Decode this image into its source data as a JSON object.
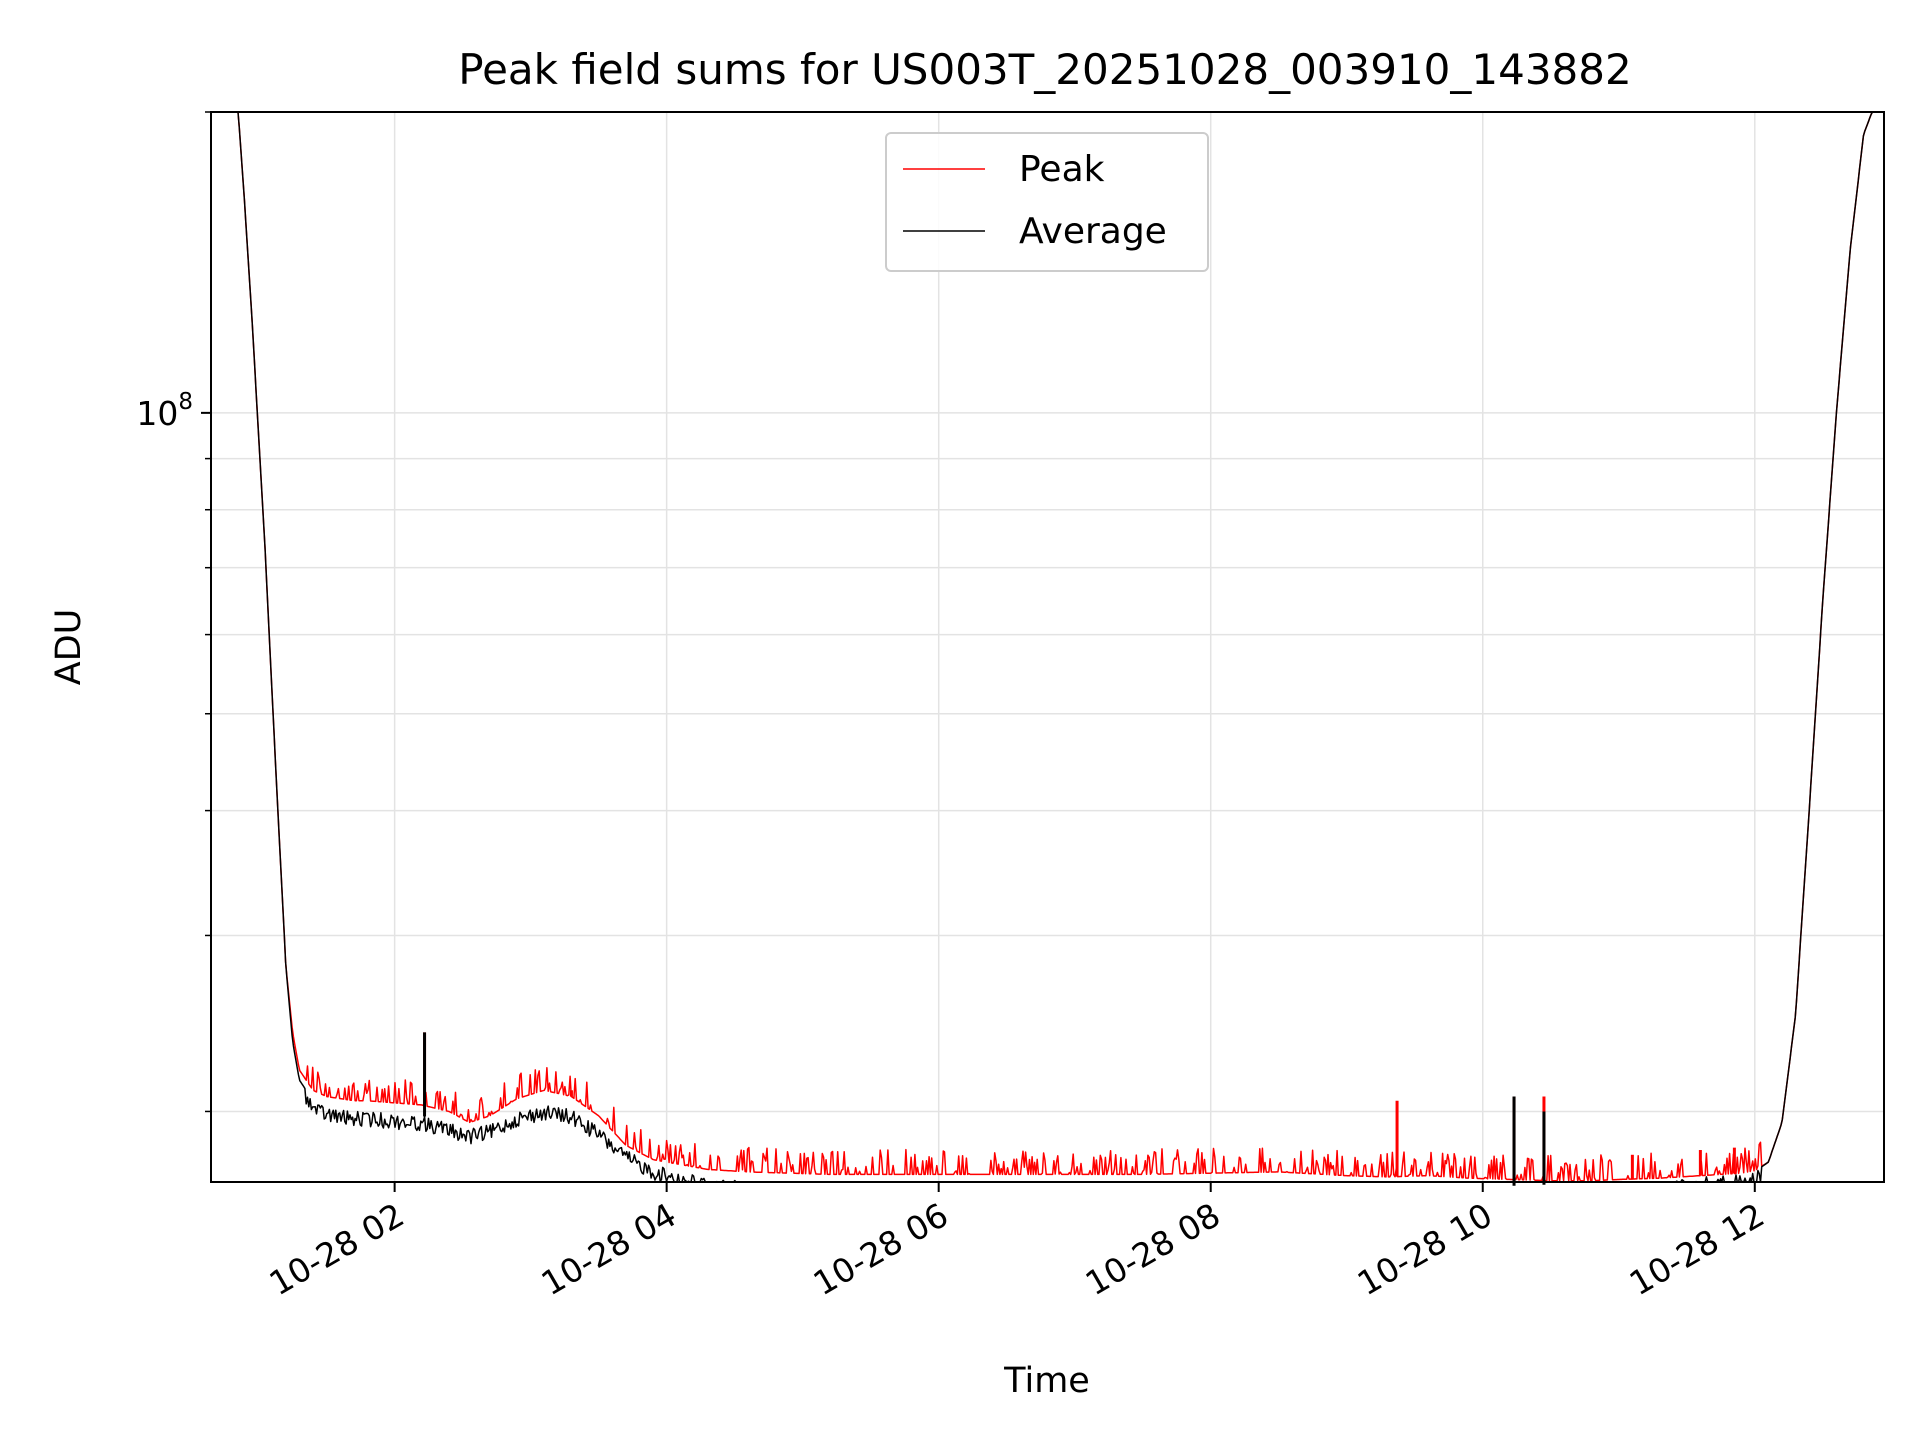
{
  "chart_data": {
    "type": "line",
    "title": "Peak field sums for US003T_20251028_003910_143882",
    "xlabel": "Time",
    "ylabel": "ADU",
    "yscale": "log",
    "ylim": [
      17000000,
      200000000
    ],
    "xlim_hours": [
      0.65,
      12.95
    ],
    "grid": true,
    "legend_placement": "upper center",
    "x_ticks": [
      {
        "hour": 2,
        "label": "10-28 02"
      },
      {
        "hour": 4,
        "label": "10-28 04"
      },
      {
        "hour": 6,
        "label": "10-28 06"
      },
      {
        "hour": 8,
        "label": "10-28 08"
      },
      {
        "hour": 10,
        "label": "10-28 10"
      },
      {
        "hour": 12,
        "label": "10-28 12"
      }
    ],
    "y_major_tick": {
      "value": 100000000,
      "label_base": "10",
      "label_exp": "8"
    },
    "series": [
      {
        "name": "Peak",
        "color": "#ff0000",
        "x_hours": [
          0.65,
          0.72,
          0.85,
          0.9,
          0.95,
          1.0,
          1.05,
          1.1,
          1.15,
          1.2,
          1.25,
          1.3,
          1.4,
          1.5,
          1.6,
          1.7,
          1.8,
          2.0,
          2.2,
          2.4,
          2.55,
          2.7,
          2.9,
          3.1,
          3.3,
          3.5,
          3.7,
          3.9,
          4.1,
          4.3,
          4.6,
          4.9,
          5.2,
          5.5,
          6.0,
          6.5,
          7.0,
          7.5,
          8.0,
          8.5,
          9.0,
          9.3,
          9.6,
          9.9,
          10.2,
          10.5,
          10.8,
          11.0,
          11.3,
          11.6,
          11.9,
          12.0,
          12.1,
          12.2,
          12.3,
          12.4,
          12.5,
          12.6,
          12.7,
          12.8,
          12.95
        ],
        "values": [
          203000000,
          202000000,
          200000000,
          160000000,
          125000000,
          95000000,
          72000000,
          52000000,
          38000000,
          28000000,
          24000000,
          22000000,
          21000000,
          20700000,
          20600000,
          20500000,
          20500000,
          20400000,
          20300000,
          20000000,
          19500000,
          19800000,
          20600000,
          21000000,
          20700000,
          19800000,
          18500000,
          17900000,
          17700000,
          17500000,
          17400000,
          17350000,
          17300000,
          17300000,
          17300000,
          17300000,
          17300000,
          17300000,
          17350000,
          17400000,
          17250000,
          17200000,
          17250000,
          17150000,
          17100000,
          17050000,
          17050000,
          17100000,
          17150000,
          17250000,
          17350000,
          17450000,
          17800000,
          19500000,
          25000000,
          40000000,
          65000000,
          100000000,
          145000000,
          190000000,
          215000000
        ],
        "spikes": [
          {
            "hour": 2.22,
            "value": 24000000
          },
          {
            "hour": 3.3,
            "value": 21000000
          },
          {
            "hour": 9.37,
            "value": 20500000
          },
          {
            "hour": 10.23,
            "value": 20700000
          },
          {
            "hour": 10.45,
            "value": 20700000
          },
          {
            "hour": 11.1,
            "value": 18100000
          },
          {
            "hour": 11.6,
            "value": 18300000
          },
          {
            "hour": 11.85,
            "value": 18400000
          }
        ]
      },
      {
        "name": "Average",
        "color": "#000000",
        "x_hours": [
          0.65,
          0.72,
          0.85,
          0.9,
          0.95,
          1.0,
          1.05,
          1.1,
          1.15,
          1.2,
          1.25,
          1.3,
          1.4,
          1.5,
          1.6,
          1.7,
          1.8,
          2.0,
          2.2,
          2.4,
          2.55,
          2.7,
          2.9,
          3.1,
          3.3,
          3.5,
          3.7,
          3.9,
          4.1,
          4.3,
          4.6,
          4.9,
          5.2,
          5.5,
          6.0,
          6.5,
          7.0,
          7.5,
          8.0,
          8.5,
          9.0,
          9.3,
          9.6,
          9.9,
          10.2,
          10.5,
          10.8,
          11.0,
          11.3,
          11.6,
          11.9,
          12.0,
          12.1,
          12.2,
          12.3,
          12.4,
          12.5,
          12.6,
          12.7,
          12.8,
          12.95
        ],
        "values": [
          203000000,
          202000000,
          200000000,
          160000000,
          125000000,
          95000000,
          72000000,
          52000000,
          38000000,
          28000000,
          23500000,
          21500000,
          20500000,
          20200000,
          20100000,
          20000000,
          20000000,
          19900000,
          19800000,
          19500000,
          19200000,
          19400000,
          20000000,
          20300000,
          20100000,
          19300000,
          18300000,
          17700000,
          17400000,
          17200000,
          17000000,
          16900000,
          16850000,
          16850000,
          16850000,
          16850000,
          16850000,
          16850000,
          16900000,
          16950000,
          16900000,
          16850000,
          16900000,
          16850000,
          16850000,
          16900000,
          16950000,
          16950000,
          17050000,
          17200000,
          17300000,
          17400000,
          17800000,
          19500000,
          25000000,
          40000000,
          65000000,
          100000000,
          145000000,
          190000000,
          215000000
        ],
        "spikes": [
          {
            "hour": 2.22,
            "value": 24000000
          },
          {
            "hour": 10.23,
            "value": 20700000
          },
          {
            "hour": 10.45,
            "value": 20000000
          }
        ]
      }
    ]
  }
}
